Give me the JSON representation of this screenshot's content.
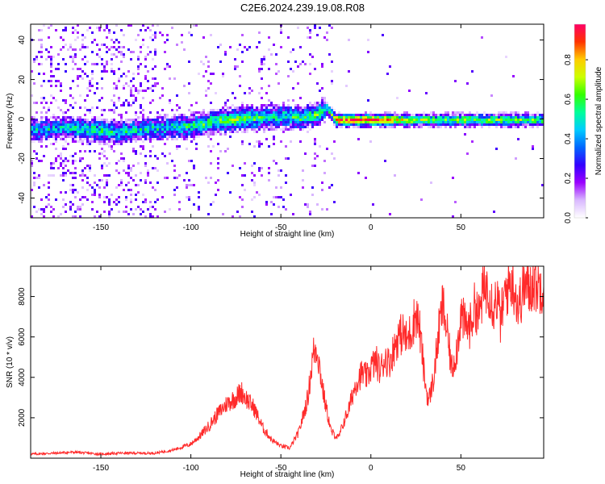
{
  "title": "C2E6.2024.239.19.08.R08",
  "chart_data": [
    {
      "type": "heatmap",
      "xlabel": "Height of straight line (km)",
      "ylabel": "Frequency (Hz)",
      "xlim": [
        -189,
        96
      ],
      "ylim": [
        -50,
        48
      ],
      "x_ticks": [
        -150,
        -100,
        -50,
        0,
        50
      ],
      "y_ticks": [
        -40,
        -20,
        0,
        20,
        40
      ],
      "colorbar": {
        "label": "Normalized spectral amplitude",
        "range": [
          0,
          0.98
        ],
        "ticks": [
          0.0,
          0.2,
          0.4,
          0.6,
          0.8
        ],
        "colors": [
          "#ffffff",
          "#d9b8ff",
          "#9b00ff",
          "#3300ff",
          "#0066ff",
          "#00ccff",
          "#00ff99",
          "#33ff00",
          "#ccff00",
          "#ffcc00",
          "#ff3300",
          "#ff0066"
        ]
      },
      "ridge": [
        {
          "x": -185,
          "f": -5,
          "amp": 0.45
        },
        {
          "x": -170,
          "f": -4,
          "amp": 0.5
        },
        {
          "x": -155,
          "f": -5,
          "amp": 0.55
        },
        {
          "x": -140,
          "f": -6,
          "amp": 0.5
        },
        {
          "x": -120,
          "f": -4,
          "amp": 0.5
        },
        {
          "x": -100,
          "f": -3,
          "amp": 0.55
        },
        {
          "x": -90,
          "f": -1,
          "amp": 0.6
        },
        {
          "x": -80,
          "f": 0,
          "amp": 0.65
        },
        {
          "x": -70,
          "f": 1,
          "amp": 0.65
        },
        {
          "x": -60,
          "f": 1,
          "amp": 0.55
        },
        {
          "x": -50,
          "f": 2,
          "amp": 0.55
        },
        {
          "x": -40,
          "f": 1,
          "amp": 0.6
        },
        {
          "x": -30,
          "f": 3,
          "amp": 0.6
        },
        {
          "x": -25,
          "f": 6,
          "amp": 0.55
        },
        {
          "x": -20,
          "f": 0,
          "amp": 0.8
        },
        {
          "x": -10,
          "f": 0,
          "amp": 0.85
        },
        {
          "x": 0,
          "f": 0,
          "amp": 0.85
        },
        {
          "x": 10,
          "f": 0,
          "amp": 0.75
        },
        {
          "x": 20,
          "f": 0,
          "amp": 0.6
        },
        {
          "x": 40,
          "f": 0,
          "amp": 0.52
        },
        {
          "x": 60,
          "f": 0,
          "amp": 0.55
        },
        {
          "x": 80,
          "f": 0,
          "amp": 0.55
        },
        {
          "x": 95,
          "f": 0,
          "amp": 0.5
        }
      ]
    },
    {
      "type": "line",
      "xlabel": "Height of straight line (km)",
      "ylabel": "SNR (10 * v/v)",
      "xlim": [
        -189,
        96
      ],
      "ylim": [
        0,
        9500
      ],
      "x_ticks": [
        -150,
        -100,
        -50,
        0,
        50
      ],
      "y_ticks": [
        2000,
        4000,
        6000,
        8000
      ],
      "series": [
        {
          "color": "#ff2a2a",
          "x": [
            -189,
            -175,
            -165,
            -150,
            -140,
            -130,
            -120,
            -110,
            -100,
            -95,
            -90,
            -85,
            -80,
            -75,
            -72,
            -68,
            -65,
            -60,
            -55,
            -50,
            -45,
            -40,
            -35,
            -32,
            -30,
            -28,
            -26,
            -22,
            -18,
            -15,
            -12,
            -10,
            -8,
            -5,
            -2,
            0,
            3,
            5,
            8,
            10,
            12,
            15,
            18,
            20,
            23,
            25,
            27,
            30,
            32,
            35,
            38,
            40,
            42,
            45,
            48,
            50,
            52,
            55,
            58,
            60,
            62,
            65,
            68,
            70,
            72,
            75,
            78,
            80,
            82,
            85,
            88,
            90,
            93,
            96
          ],
          "y": [
            200,
            250,
            300,
            200,
            250,
            250,
            250,
            400,
            700,
            1100,
            1600,
            2200,
            2700,
            3000,
            3300,
            2800,
            2500,
            1500,
            900,
            600,
            500,
            1300,
            3000,
            5200,
            5500,
            4200,
            3000,
            1300,
            1000,
            1800,
            2500,
            3200,
            3800,
            4200,
            4000,
            4500,
            4800,
            4300,
            5000,
            4700,
            5200,
            6000,
            6200,
            5800,
            6500,
            7200,
            6500,
            3800,
            2800,
            4000,
            6500,
            7600,
            6400,
            4400,
            5500,
            7200,
            6600,
            6500,
            7600,
            7000,
            8100,
            8600,
            7500,
            8000,
            6800,
            8300,
            8800,
            8400,
            7400,
            8600,
            8300,
            8800,
            8500,
            8700
          ]
        }
      ]
    }
  ]
}
